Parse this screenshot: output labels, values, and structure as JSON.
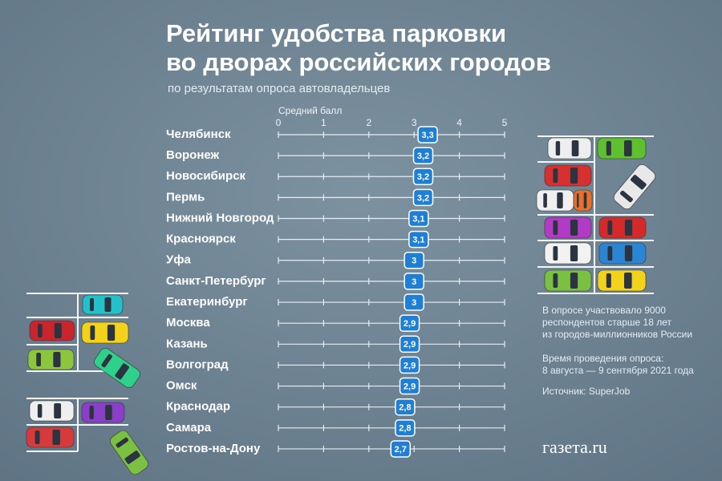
{
  "chart_data": {
    "type": "dot",
    "title": [
      "Рейтинг удобства парковки",
      "во дворах российских городов"
    ],
    "subtitle": "по результатам опроса автовладельцев",
    "x_axis_label": "Средний балл",
    "categories": [
      "Челябинск",
      "Воронеж",
      "Новосибирск",
      "Пермь",
      "Нижний Новгород",
      "Красноярск",
      "Уфа",
      "Санкт-Петербург",
      "Екатеринбург",
      "Москва",
      "Казань",
      "Волгоград",
      "Омск",
      "Краснодар",
      "Самара",
      "Ростов-на-Дону"
    ],
    "values": [
      3.3,
      3.2,
      3.2,
      3.2,
      3.1,
      3.1,
      3,
      3,
      3,
      2.9,
      2.9,
      2.9,
      2.9,
      2.8,
      2.8,
      2.7
    ],
    "value_labels": [
      "3,3",
      "3,2",
      "3,2",
      "3,2",
      "3,1",
      "3,1",
      "3",
      "3",
      "3",
      "2,9",
      "2,9",
      "2,9",
      "2,9",
      "2,8",
      "2,8",
      "2,7"
    ],
    "color": "#1f7fd4",
    "xlim": [
      0,
      5
    ],
    "xticks": [
      0,
      1,
      2,
      3,
      4,
      5
    ],
    "notes": [
      [
        "В опросе участвовало 9000",
        "респондентов старше 18 лет",
        "из городов-миллионников России"
      ],
      [
        "Время проведения опроса:",
        "8 августа — 9 сентября 2021 года"
      ],
      [
        "Источник: SuperJob"
      ]
    ],
    "logo": "газета.ru"
  }
}
